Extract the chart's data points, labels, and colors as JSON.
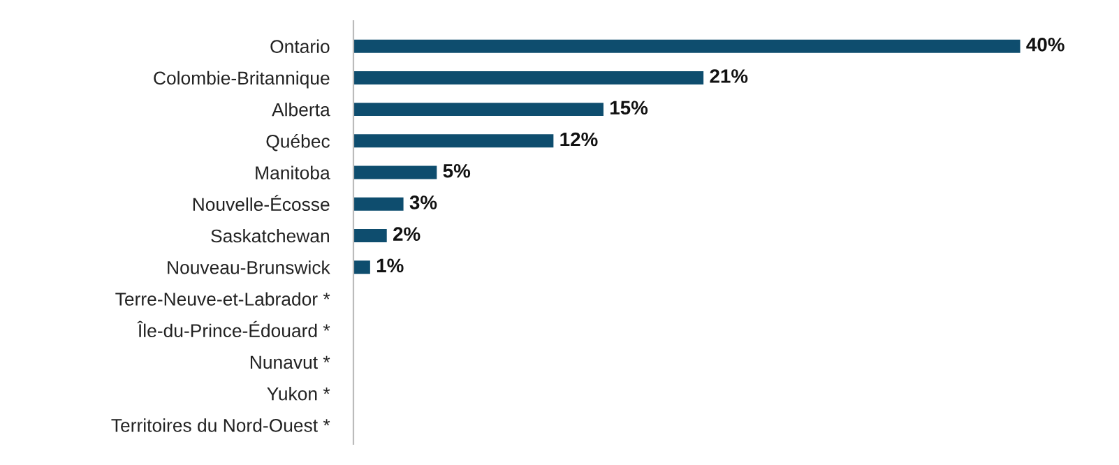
{
  "chart_data": {
    "type": "bar",
    "orientation": "horizontal",
    "categories": [
      "Ontario",
      "Colombie-Britannique",
      "Alberta",
      "Québec",
      "Manitoba",
      "Nouvelle-Écosse",
      "Saskatchewan",
      "Nouveau-Brunswick",
      "Terre-Neuve-et-Labrador *",
      "Île-du-Prince-Édouard *",
      "Nunavut *",
      "Yukon *",
      "Territoires du Nord-Ouest *"
    ],
    "values": [
      40,
      21,
      15,
      12,
      5,
      3,
      2,
      1,
      null,
      null,
      null,
      null,
      null
    ],
    "value_labels": [
      "40%",
      "21%",
      "15%",
      "12%",
      "5%",
      "3%",
      "2%",
      "1%",
      null,
      null,
      null,
      null,
      null
    ],
    "color": "#0e4d6e",
    "grid": false,
    "legend": false
  }
}
